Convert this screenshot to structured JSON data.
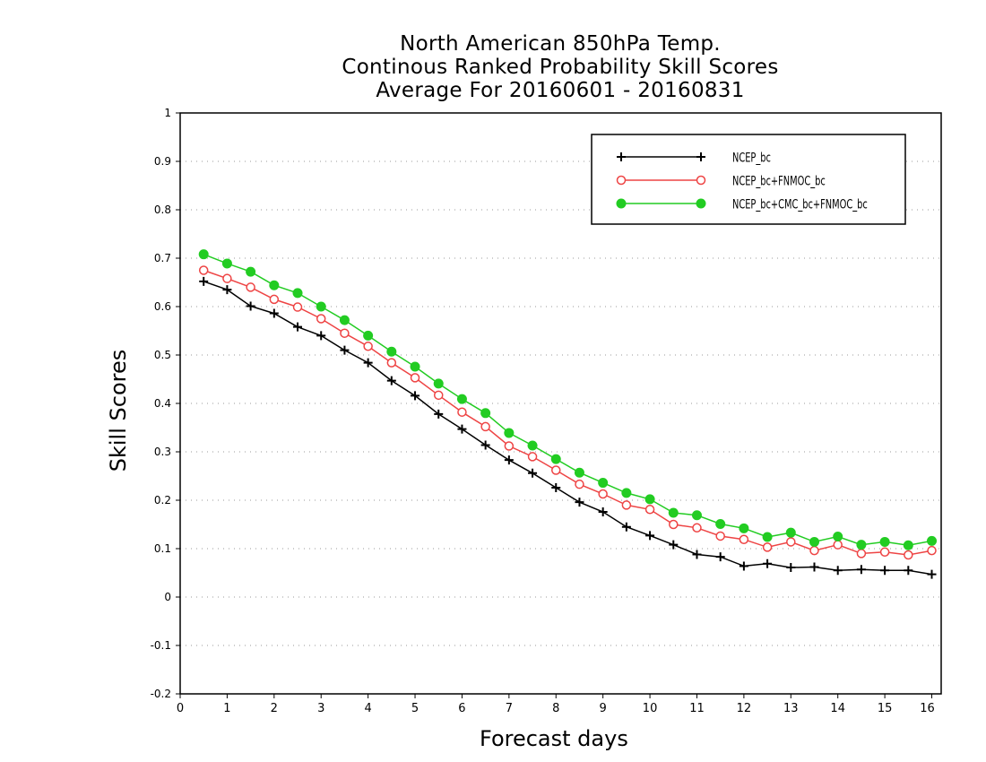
{
  "chart_data": {
    "type": "line",
    "title_lines": [
      "North American 850hPa Temp.",
      "Continous Ranked Probability Skill Scores",
      "Average For 20160601 - 20160831"
    ],
    "xlabel": "Forecast days",
    "ylabel": "Skill Scores",
    "xlim": [
      0,
      16.2
    ],
    "ylim": [
      -0.2,
      1
    ],
    "x_ticks": [
      0,
      1,
      2,
      3,
      4,
      5,
      6,
      7,
      8,
      9,
      10,
      11,
      12,
      13,
      14,
      15,
      16
    ],
    "y_ticks": [
      -0.2,
      -0.1,
      0,
      0.1,
      0.2,
      0.3,
      0.4,
      0.5,
      0.6,
      0.7,
      0.8,
      0.9,
      1
    ],
    "y_tick_labels": [
      "-0.2",
      "-0.1",
      "0",
      "0.1",
      "0.2",
      "0.3",
      "0.4",
      "0.5",
      "0.6",
      "0.7",
      "0.8",
      "0.9",
      "1"
    ],
    "grid": "horizontal dotted",
    "legend_position": "top-right",
    "x": [
      0.5,
      1,
      1.5,
      2,
      2.5,
      3,
      3.5,
      4,
      4.5,
      5,
      5.5,
      6,
      6.5,
      7,
      7.5,
      8,
      8.5,
      9,
      9.5,
      10,
      10.5,
      11,
      11.5,
      12,
      12.5,
      13,
      13.5,
      14,
      14.5,
      15,
      15.5,
      16
    ],
    "series": [
      {
        "name": "NCEP_bc",
        "color": "#000000",
        "marker": "plus",
        "values": [
          0.652,
          0.635,
          0.601,
          0.586,
          0.558,
          0.54,
          0.51,
          0.484,
          0.447,
          0.416,
          0.378,
          0.347,
          0.314,
          0.283,
          0.256,
          0.226,
          0.196,
          0.176,
          0.145,
          0.127,
          0.108,
          0.088,
          0.083,
          0.064,
          0.069,
          0.061,
          0.062,
          0.055,
          0.057,
          0.055,
          0.055,
          0.047
        ]
      },
      {
        "name": "NCEP_bc+FNMOC_bc",
        "color": "#ee4444",
        "marker": "open-circle",
        "values": [
          0.675,
          0.658,
          0.64,
          0.615,
          0.599,
          0.575,
          0.545,
          0.518,
          0.484,
          0.453,
          0.417,
          0.382,
          0.352,
          0.312,
          0.29,
          0.262,
          0.233,
          0.213,
          0.19,
          0.181,
          0.15,
          0.143,
          0.126,
          0.119,
          0.103,
          0.114,
          0.096,
          0.108,
          0.09,
          0.093,
          0.087,
          0.096
        ]
      },
      {
        "name": "NCEP_bc+CMC_bc+FNMOC_bc",
        "color": "#22cc22",
        "marker": "filled-circle",
        "values": [
          0.708,
          0.689,
          0.672,
          0.644,
          0.628,
          0.6,
          0.572,
          0.54,
          0.507,
          0.476,
          0.441,
          0.409,
          0.38,
          0.339,
          0.313,
          0.285,
          0.257,
          0.236,
          0.215,
          0.202,
          0.174,
          0.169,
          0.151,
          0.142,
          0.124,
          0.133,
          0.114,
          0.125,
          0.108,
          0.114,
          0.107,
          0.116
        ]
      }
    ]
  }
}
